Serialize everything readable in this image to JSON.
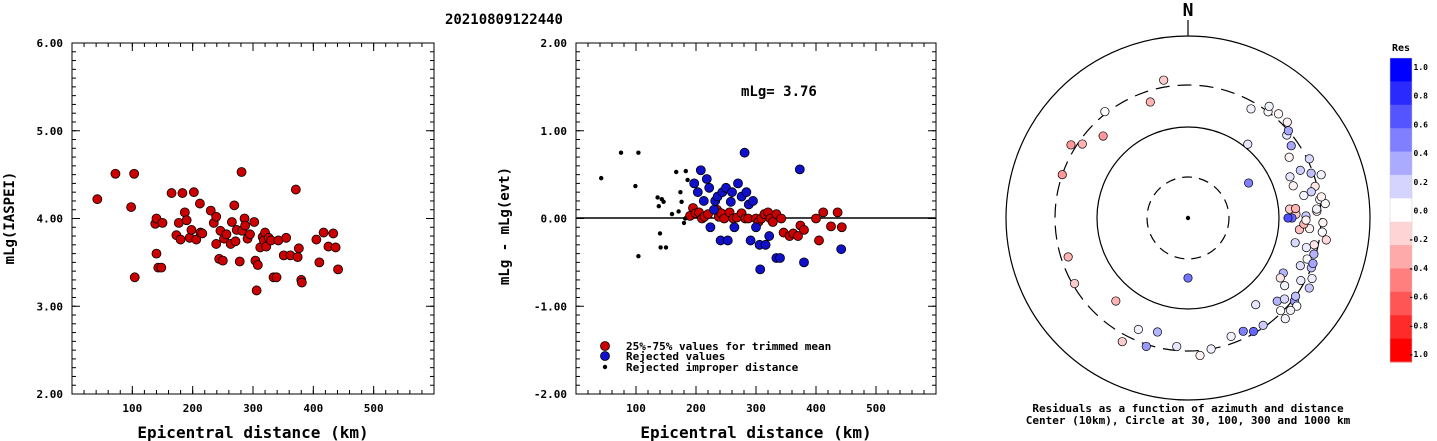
{
  "title": "20210809122440",
  "chart_data": [
    {
      "type": "scatter",
      "xlabel": "Epicentral distance (km)",
      "ylabel": "mLg(IASPEI)",
      "xlim": [
        0,
        600
      ],
      "ylim": [
        2.0,
        6.0
      ],
      "x_ticks": [
        "100",
        "200",
        "300",
        "400",
        "500"
      ],
      "y_ticks": [
        "2.00",
        "3.00",
        "4.00",
        "5.00",
        "6.00"
      ],
      "marker_color": "#cc0000",
      "points": [
        [
          42,
          4.22
        ],
        [
          72,
          4.51
        ],
        [
          98,
          4.13
        ],
        [
          103,
          4.51
        ],
        [
          104,
          3.33
        ],
        [
          138,
          3.94
        ],
        [
          140,
          3.6
        ],
        [
          140,
          4.0
        ],
        [
          143,
          3.44
        ],
        [
          148,
          3.44
        ],
        [
          150,
          3.95
        ],
        [
          165,
          4.29
        ],
        [
          173,
          3.81
        ],
        [
          177,
          3.95
        ],
        [
          180,
          3.76
        ],
        [
          183,
          4.29
        ],
        [
          187,
          4.07
        ],
        [
          190,
          3.98
        ],
        [
          195,
          3.78
        ],
        [
          198,
          3.87
        ],
        [
          202,
          4.3
        ],
        [
          206,
          3.76
        ],
        [
          212,
          4.17
        ],
        [
          213,
          3.84
        ],
        [
          216,
          3.83
        ],
        [
          230,
          4.09
        ],
        [
          235,
          3.95
        ],
        [
          239,
          4.02
        ],
        [
          239,
          3.71
        ],
        [
          244,
          3.54
        ],
        [
          246,
          3.86
        ],
        [
          250,
          3.52
        ],
        [
          252,
          3.77
        ],
        [
          256,
          3.82
        ],
        [
          263,
          3.71
        ],
        [
          265,
          3.96
        ],
        [
          269,
          4.15
        ],
        [
          271,
          3.74
        ],
        [
          273,
          3.87
        ],
        [
          278,
          3.51
        ],
        [
          281,
          4.53
        ],
        [
          282,
          3.86
        ],
        [
          286,
          4.0
        ],
        [
          287,
          3.92
        ],
        [
          291,
          3.77
        ],
        [
          295,
          3.82
        ],
        [
          302,
          3.96
        ],
        [
          304,
          3.52
        ],
        [
          306,
          3.18
        ],
        [
          308,
          3.47
        ],
        [
          312,
          3.67
        ],
        [
          316,
          3.79
        ],
        [
          318,
          3.75
        ],
        [
          320,
          3.84
        ],
        [
          322,
          3.68
        ],
        [
          326,
          3.78
        ],
        [
          330,
          3.75
        ],
        [
          334,
          3.33
        ],
        [
          339,
          3.33
        ],
        [
          342,
          3.75
        ],
        [
          351,
          3.58
        ],
        [
          355,
          3.78
        ],
        [
          362,
          3.58
        ],
        [
          371,
          4.33
        ],
        [
          374,
          3.56
        ],
        [
          376,
          3.66
        ],
        [
          380,
          3.3
        ],
        [
          381,
          3.27
        ],
        [
          405,
          3.76
        ],
        [
          410,
          3.5
        ],
        [
          417,
          3.84
        ],
        [
          425,
          3.68
        ],
        [
          433,
          3.83
        ],
        [
          437,
          3.67
        ],
        [
          441,
          3.42
        ]
      ]
    },
    {
      "type": "scatter",
      "xlabel": "Epicentral distance (km)",
      "ylabel": "mLg - mLg(evt)",
      "xlim": [
        0,
        600
      ],
      "ylim": [
        -2.0,
        2.0
      ],
      "x_ticks": [
        "100",
        "200",
        "300",
        "400",
        "500"
      ],
      "y_ticks": [
        "-2.00",
        "-1.00",
        "0.00",
        "1.00",
        "2.00"
      ],
      "annotation": "mLg= 3.76",
      "legend": [
        "25%-75% values for trimmed mean",
        "Rejected values",
        "Rejected improper distance"
      ],
      "legend_colors": [
        "#cc0000",
        "#1010cc",
        "#000000"
      ],
      "series": [
        {
          "name": "25%-75% values for trimmed mean",
          "points": [
            [
              190,
              0.03
            ],
            [
              195,
              0.12
            ],
            [
              199,
              0.06
            ],
            [
              205,
              0.07
            ],
            [
              210,
              0.0
            ],
            [
              214,
              0.02
            ],
            [
              220,
              0.05
            ],
            [
              235,
              0.1
            ],
            [
              238,
              0.02
            ],
            [
              242,
              0.06
            ],
            [
              247,
              0.0
            ],
            [
              256,
              0.07
            ],
            [
              262,
              0.0
            ],
            [
              268,
              0.01
            ],
            [
              276,
              0.06
            ],
            [
              282,
              0.0
            ],
            [
              287,
              0.0
            ],
            [
              300,
              0.0
            ],
            [
              304,
              -0.04
            ],
            [
              309,
              0.0
            ],
            [
              314,
              0.05
            ],
            [
              320,
              0.07
            ],
            [
              324,
              0.0
            ],
            [
              328,
              -0.04
            ],
            [
              334,
              0.05
            ],
            [
              342,
              0.0
            ],
            [
              346,
              -0.16
            ],
            [
              356,
              -0.2
            ],
            [
              362,
              -0.17
            ],
            [
              370,
              -0.2
            ],
            [
              374,
              -0.08
            ],
            [
              380,
              -0.13
            ],
            [
              400,
              0.0
            ],
            [
              405,
              -0.25
            ],
            [
              412,
              0.07
            ],
            [
              425,
              -0.09
            ],
            [
              436,
              0.07
            ],
            [
              443,
              -0.1
            ]
          ]
        },
        {
          "name": "Rejected values",
          "points": [
            [
              197,
              0.4
            ],
            [
              203,
              0.3
            ],
            [
              208,
              0.55
            ],
            [
              213,
              0.2
            ],
            [
              218,
              0.45
            ],
            [
              222,
              0.35
            ],
            [
              224,
              -0.1
            ],
            [
              230,
              0.1
            ],
            [
              232,
              0.2
            ],
            [
              236,
              0.25
            ],
            [
              241,
              -0.25
            ],
            [
              244,
              0.3
            ],
            [
              250,
              0.35
            ],
            [
              253,
              -0.25
            ],
            [
              258,
              0.19
            ],
            [
              260,
              0.3
            ],
            [
              264,
              -0.1
            ],
            [
              270,
              0.4
            ],
            [
              276,
              0.25
            ],
            [
              281,
              0.75
            ],
            [
              284,
              0.3
            ],
            [
              288,
              0.16
            ],
            [
              291,
              -0.25
            ],
            [
              295,
              0.2
            ],
            [
              300,
              -0.1
            ],
            [
              306,
              -0.3
            ],
            [
              307,
              -0.58
            ],
            [
              316,
              -0.3
            ],
            [
              322,
              -0.2
            ],
            [
              334,
              -0.45
            ],
            [
              340,
              -0.45
            ],
            [
              373,
              0.56
            ],
            [
              380,
              -0.5
            ],
            [
              442,
              -0.35
            ]
          ]
        },
        {
          "name": "Rejected improper distance",
          "points": [
            [
              42,
              0.46
            ],
            [
              75,
              0.75
            ],
            [
              99,
              0.37
            ],
            [
              104,
              0.75
            ],
            [
              104,
              -0.43
            ],
            [
              136,
              0.24
            ],
            [
              138,
              0.14
            ],
            [
              140,
              -0.17
            ],
            [
              141,
              -0.33
            ],
            [
              143,
              0.22
            ],
            [
              146,
              0.19
            ],
            [
              150,
              -0.33
            ],
            [
              160,
              0.05
            ],
            [
              167,
              0.53
            ],
            [
              171,
              0.08
            ],
            [
              174,
              0.3
            ],
            [
              176,
              0.19
            ],
            [
              180,
              -0.05
            ],
            [
              182,
              0.0
            ],
            [
              183,
              0.54
            ],
            [
              186,
              0.44
            ]
          ]
        }
      ]
    },
    {
      "type": "scatter",
      "title": "N",
      "caption": [
        "Residuals as a function of azimuth and distance",
        "Center (10km), Circle at 30, 100, 300 and 1000 km"
      ],
      "colorbar": {
        "title": "Res",
        "ticks": [
          "1.0",
          "0.8",
          "0.6",
          "0.4",
          "0.2",
          "0.0",
          "-0.2",
          "-0.4",
          "-0.6",
          "-0.8",
          "-1.0"
        ],
        "colors": [
          "#0000ff",
          "#2a2aff",
          "#5555ff",
          "#7f7fff",
          "#aaaaff",
          "#d4d4ff",
          "#ffffff",
          "#ffd4d4",
          "#ffaaaa",
          "#ff7f7f",
          "#ff5555",
          "#ff2a2a",
          "#ff0000"
        ]
      },
      "points": [
        [
          30,
          0.05
        ],
        [
          37,
          0.02
        ],
        [
          41,
          -0.03
        ],
        [
          50,
          0.1
        ],
        [
          59,
          -0.05
        ],
        [
          64,
          0.15
        ],
        [
          67,
          0.2
        ],
        [
          72,
          0.05
        ],
        [
          73,
          -0.05
        ],
        [
          76,
          -0.1
        ],
        [
          78,
          0.18
        ],
        [
          82,
          0.06
        ],
        [
          84,
          -0.02
        ],
        [
          87,
          -0.08
        ],
        [
          89,
          0.2
        ],
        [
          92,
          -0.05
        ],
        [
          95,
          -0.05
        ],
        [
          99,
          -0.15
        ],
        [
          103,
          0.15
        ],
        [
          106,
          0.3
        ],
        [
          109,
          0.02
        ],
        [
          112,
          0.25
        ],
        [
          116,
          0.07
        ],
        [
          119,
          0.08
        ],
        [
          125,
          0.05
        ],
        [
          128,
          0.4
        ],
        [
          133,
          0.3
        ],
        [
          136,
          0.05
        ],
        [
          142,
          0.1
        ],
        [
          150,
          0.6
        ],
        [
          160,
          0.05
        ],
        [
          170,
          0.06
        ],
        [
          175,
          -0.05
        ],
        [
          185,
          0.1
        ],
        [
          195,
          0.3
        ],
        [
          198,
          0.4
        ],
        [
          204,
          0.05
        ],
        [
          208,
          -0.2
        ],
        [
          221,
          -0.3
        ],
        [
          240,
          -0.2
        ],
        [
          252,
          -0.3
        ],
        [
          289,
          -0.4
        ],
        [
          302,
          -0.4
        ],
        [
          305,
          -0.3
        ],
        [
          314,
          -0.4
        ],
        [
          322,
          0.0
        ],
        [
          342,
          -0.3
        ],
        [
          350,
          -0.2
        ],
        [
          39,
          0.1
        ],
        [
          60,
          0.5
        ],
        [
          85,
          -0.2
        ],
        [
          88,
          -0.2
        ],
        [
          96,
          -0.25
        ],
        [
          93,
          -0.3
        ],
        [
          85,
          -0.3
        ],
        [
          180,
          0.55
        ],
        [
          90,
          0.6
        ],
        [
          90,
          0.7
        ],
        [
          120,
          0.3
        ],
        [
          145,
          0.2
        ],
        [
          154,
          0.5
        ],
        [
          110,
          0.35
        ],
        [
          36,
          0.05
        ],
        [
          102,
          -0.1
        ],
        [
          79,
          0.04
        ],
        [
          81,
          -0.06
        ],
        [
          104,
          0.08
        ],
        [
          129,
          0.02
        ],
        [
          68,
          0.1
        ],
        [
          70,
          0.25
        ],
        [
          130,
          0.15
        ],
        [
          126,
          0.25
        ],
        [
          132,
          0.05
        ],
        [
          86,
          0.05
        ],
        [
          91,
          -0.05
        ],
        [
          96,
          0.02
        ],
        [
          113,
          0.12
        ],
        [
          120,
          0.22
        ],
        [
          123,
          -0.1
        ],
        [
          135,
          0.0
        ],
        [
          55,
          0.35
        ],
        [
          49,
          0.35
        ],
        [
          46,
          -0.05
        ]
      ]
    }
  ]
}
